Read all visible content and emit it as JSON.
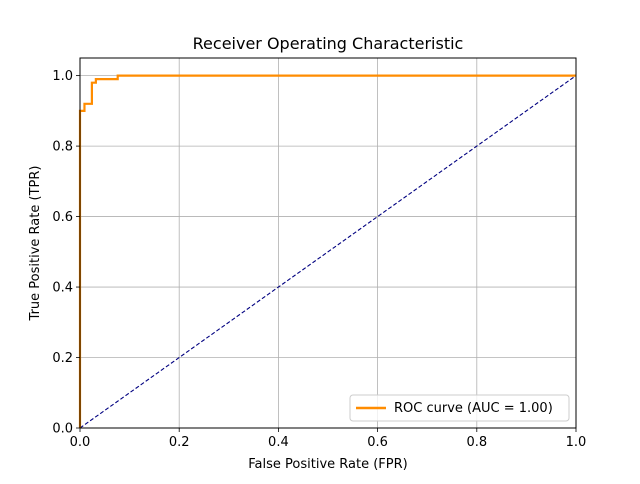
{
  "chart_data": {
    "type": "line",
    "title": "Receiver Operating Characteristic",
    "xlabel": "False Positive Rate (FPR)",
    "ylabel": "True Positive Rate (TPR)",
    "xlim": [
      0.0,
      1.0
    ],
    "ylim": [
      0.0,
      1.05
    ],
    "xticks": [
      "0.0",
      "0.2",
      "0.4",
      "0.6",
      "0.8",
      "1.0"
    ],
    "yticks": [
      "0.0",
      "0.2",
      "0.4",
      "0.6",
      "0.8",
      "1.0"
    ],
    "grid": true,
    "legend_position": "lower-right",
    "series": [
      {
        "name": "ROC curve (AUC = 1.00)",
        "color": "#ff8c00",
        "style": "solid",
        "x": [
          0.0,
          0.0,
          0.0,
          0.009,
          0.009,
          0.024,
          0.024,
          0.032,
          0.032,
          0.076,
          0.076,
          1.0
        ],
        "y": [
          0.0,
          0.87,
          0.9,
          0.9,
          0.92,
          0.92,
          0.98,
          0.98,
          0.99,
          0.99,
          1.0,
          1.0
        ]
      },
      {
        "name": "",
        "color": "#000080",
        "style": "dashed",
        "x": [
          0.0,
          1.0
        ],
        "y": [
          0.0,
          1.0
        ]
      }
    ]
  }
}
